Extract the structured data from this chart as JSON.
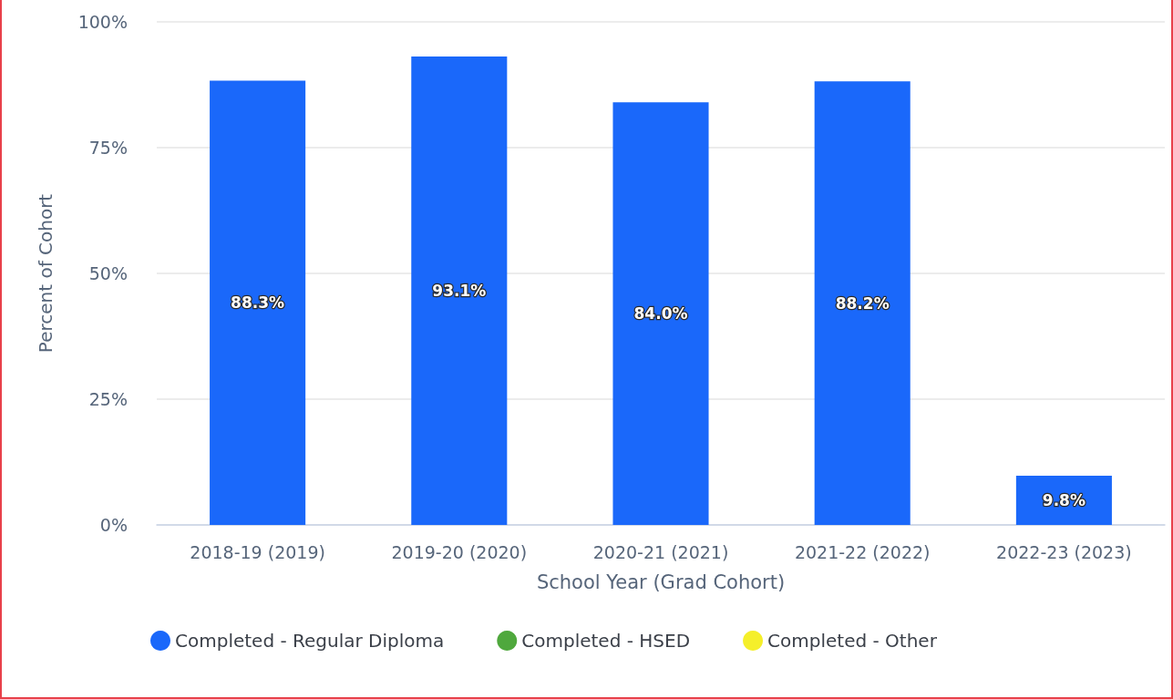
{
  "chart_data": {
    "type": "bar",
    "xlabel": "School Year (Grad Cohort)",
    "ylabel": "Percent of Cohort",
    "categories": [
      "2018-19 (2019)",
      "2019-20 (2020)",
      "2020-21 (2021)",
      "2021-22 (2022)",
      "2022-23 (2023)"
    ],
    "series": [
      {
        "name": "Completed - Regular Diploma",
        "color": "#1a68fa",
        "values": [
          88.3,
          93.1,
          84.0,
          88.2,
          9.8
        ],
        "value_labels": [
          "88.3%",
          "93.1%",
          "84.0%",
          "88.2%",
          "9.8%"
        ]
      },
      {
        "name": "Completed - HSED",
        "color": "#4fa83d",
        "values": [
          null,
          null,
          null,
          null,
          null
        ]
      },
      {
        "name": "Completed - Other",
        "color": "#f5ef2a",
        "values": [
          null,
          null,
          null,
          null,
          null
        ]
      }
    ],
    "ylim": [
      0,
      100
    ],
    "yticks": [
      {
        "value": 0,
        "label": "0%"
      },
      {
        "value": 25,
        "label": "25%"
      },
      {
        "value": 50,
        "label": "50%"
      },
      {
        "value": 75,
        "label": "75%"
      },
      {
        "value": 100,
        "label": "100%"
      }
    ],
    "grid": "y",
    "legend": "bottom"
  }
}
